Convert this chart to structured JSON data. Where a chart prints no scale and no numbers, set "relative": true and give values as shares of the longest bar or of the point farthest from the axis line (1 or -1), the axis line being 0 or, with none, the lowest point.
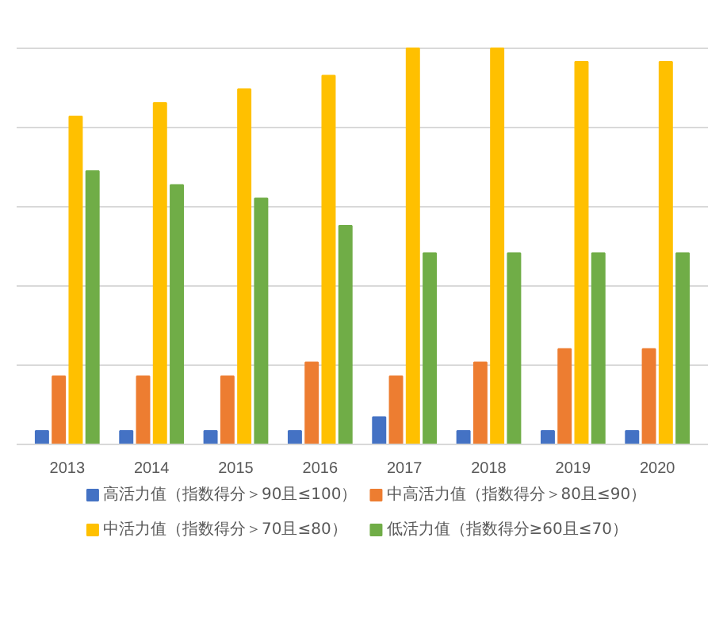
{
  "chart_data": {
    "type": "bar",
    "relative": true,
    "grid": "y",
    "legend": "bottom",
    "categories": [
      "2013",
      "2014",
      "2015",
      "2016",
      "2017",
      "2018",
      "2019",
      "2020"
    ],
    "series": [
      {
        "name": "高活力值（指数得分＞90且≤100）",
        "color": "#4472c4",
        "values": [
          0.034,
          0.034,
          0.034,
          0.034,
          0.069,
          0.034,
          0.034,
          0.034
        ]
      },
      {
        "name": "中高活力值（指数得分＞80且≤90）",
        "color": "#ed7d31",
        "values": [
          0.172,
          0.172,
          0.172,
          0.207,
          0.172,
          0.207,
          0.241,
          0.241
        ]
      },
      {
        "name": "中活力值（指数得分＞70且≤80）",
        "color": "#ffc000",
        "values": [
          0.828,
          0.862,
          0.897,
          0.931,
          1,
          1,
          0.966,
          0.966
        ]
      },
      {
        "name": "低活力值（指数得分≥60且≤70）",
        "color": "#70ad47",
        "values": [
          0.69,
          0.655,
          0.621,
          0.552,
          0.483,
          0.483,
          0.483,
          0.483
        ]
      }
    ]
  }
}
